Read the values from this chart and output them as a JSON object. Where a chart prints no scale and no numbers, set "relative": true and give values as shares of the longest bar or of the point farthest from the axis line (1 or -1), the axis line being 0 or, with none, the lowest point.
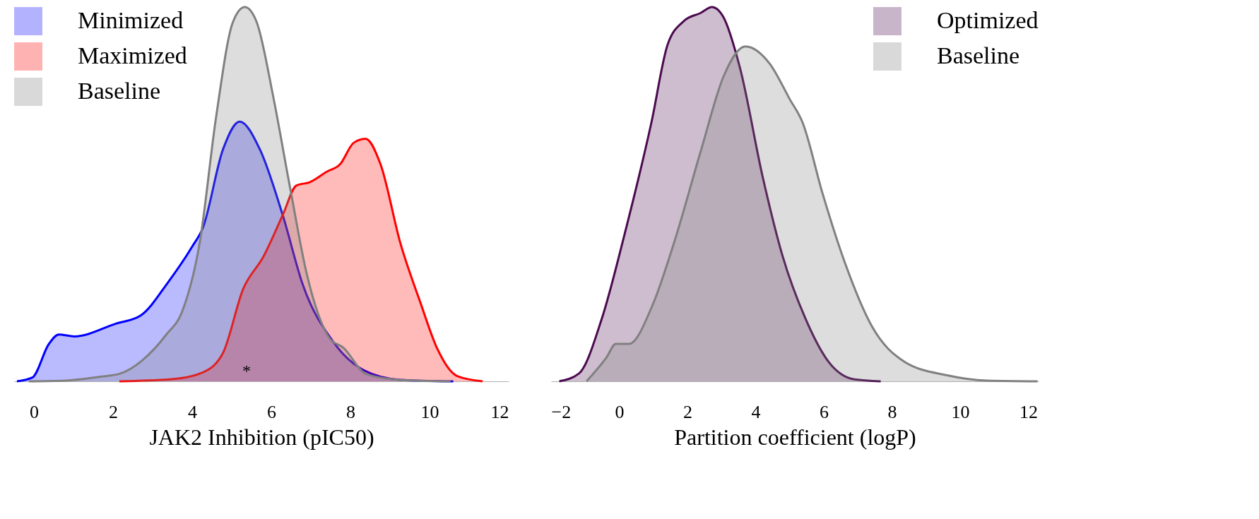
{
  "chart_data": [
    {
      "type": "area",
      "relative": true,
      "xlabel": "JAK2 Inhibition (pIC50)",
      "xlim": [
        -0.5,
        12
      ],
      "xticks": [
        0,
        2,
        4,
        6,
        8,
        10,
        12
      ],
      "legend": "top left",
      "annotations": [
        "*"
      ],
      "series": [
        {
          "name": "Minimized",
          "color": "#0000ff",
          "x": [
            -0.43,
            -0.04,
            0.38,
            0.63,
            1.02,
            2.07,
            2.7,
            3.4,
            4.0,
            4.27,
            4.78,
            5.2,
            5.71,
            6.3,
            6.8,
            7.57,
            8.33,
            9.26,
            10.6
          ],
          "values": [
            0,
            0.01,
            0.1,
            0.125,
            0.12,
            0.154,
            0.176,
            0.266,
            0.36,
            0.41,
            0.62,
            0.694,
            0.62,
            0.44,
            0.257,
            0.105,
            0.03,
            0.004,
            0
          ]
        },
        {
          "name": "Maximized",
          "color": "#ff0000",
          "x": [
            2.16,
            3.43,
            4.27,
            4.78,
            5.29,
            5.8,
            6.3,
            6.63,
            6.97,
            7.4,
            7.74,
            8.08,
            8.38,
            8.76,
            9.26,
            9.77,
            10.2,
            10.7,
            11.34
          ],
          "values": [
            0,
            0.005,
            0.024,
            0.076,
            0.247,
            0.333,
            0.447,
            0.523,
            0.532,
            0.56,
            0.58,
            0.637,
            0.648,
            0.58,
            0.37,
            0.21,
            0.086,
            0.014,
            0
          ]
        },
        {
          "name": "Baseline",
          "color": "#808080",
          "x": [
            -0.13,
            0.8,
            1.65,
            2.16,
            2.75,
            3.34,
            3.76,
            4.19,
            4.61,
            5.03,
            5.33,
            5.63,
            6.05,
            6.47,
            6.9,
            7.48,
            7.82,
            8.4,
            9.35,
            10.53
          ],
          "values": [
            0,
            0.002,
            0.012,
            0.02,
            0.057,
            0.124,
            0.19,
            0.37,
            0.71,
            0.96,
            1.0,
            0.96,
            0.76,
            0.52,
            0.285,
            0.114,
            0.09,
            0.019,
            0.003,
            0
          ]
        }
      ]
    },
    {
      "type": "area",
      "relative": true,
      "xlabel": "Partition coefficient (logP)",
      "xlim": [
        -2,
        12.3
      ],
      "xticks": [
        -2,
        0,
        2,
        4,
        6,
        8,
        10,
        12
      ],
      "legend": "top right",
      "series": [
        {
          "name": "Optimized",
          "color": "#4b0a4f",
          "x": [
            -1.76,
            -1.18,
            -0.51,
            0.17,
            0.94,
            1.42,
            1.9,
            2.38,
            2.72,
            3.05,
            3.54,
            4.21,
            4.79,
            5.46,
            6.14,
            6.9,
            7.67
          ],
          "values": [
            0,
            0.021,
            0.168,
            0.398,
            0.69,
            0.9,
            0.963,
            0.984,
            1,
            0.974,
            0.838,
            0.545,
            0.335,
            0.168,
            0.052,
            0.005,
            0
          ]
        },
        {
          "name": "Baseline",
          "color": "#808080",
          "x": [
            -0.96,
            -0.38,
            -0.1,
            0.29,
            0.96,
            1.63,
            2.4,
            3.07,
            3.7,
            4.42,
            5.0,
            5.38,
            5.96,
            6.63,
            7.41,
            8.37,
            9.62,
            10.78,
            12.27
          ],
          "values": [
            0,
            0.063,
            0.1,
            0.1,
            0.2,
            0.377,
            0.618,
            0.817,
            0.895,
            0.848,
            0.754,
            0.691,
            0.503,
            0.314,
            0.147,
            0.052,
            0.016,
            0.002,
            0
          ]
        }
      ]
    }
  ]
}
